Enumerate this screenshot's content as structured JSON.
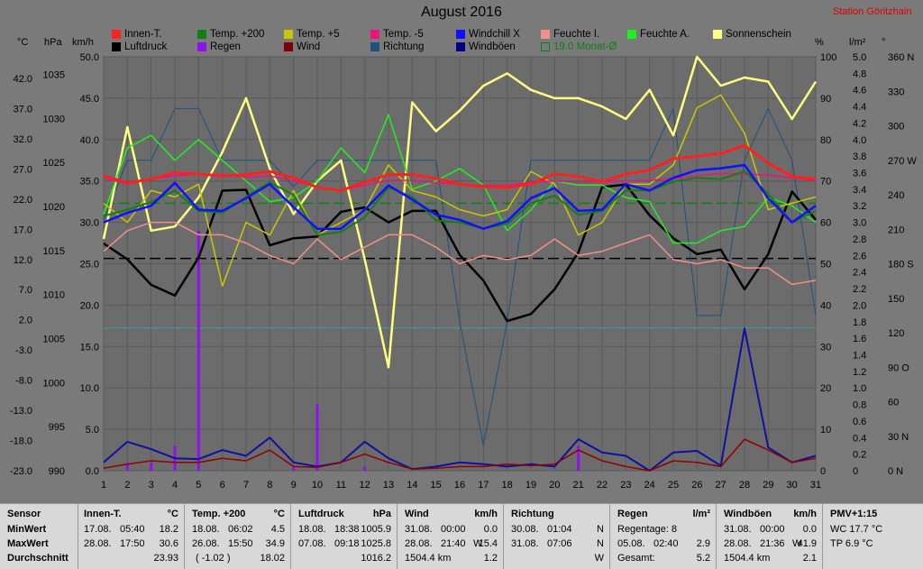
{
  "title": "August 2016",
  "station": "Station Göritzhain",
  "axis_units": {
    "temp": "°C",
    "pressure": "hPa",
    "wind": "km/h",
    "percent": "%",
    "rain": "l/m²",
    "deg": "°"
  },
  "legend": [
    {
      "label": "Innen-T.",
      "color": "#ff2020",
      "box": false
    },
    {
      "label": "Temp. +200",
      "color": "#108010",
      "box": false
    },
    {
      "label": "Temp. +5",
      "color": "#c8c800",
      "box": false
    },
    {
      "label": "Temp. -5",
      "color": "#f01080",
      "box": false
    },
    {
      "label": "Windchill X",
      "color": "#1010ff",
      "box": false
    },
    {
      "label": "Feuchte I.",
      "color": "#f0908a",
      "box": false
    },
    {
      "label": "Feuchte A.",
      "color": "#20f020",
      "box": false
    },
    {
      "label": "Sonnenschein",
      "color": "#ffff80",
      "box": false
    },
    {
      "label": "Luftdruck",
      "color": "#000000",
      "box": false
    },
    {
      "label": "Regen",
      "color": "#9010f0",
      "box": false
    },
    {
      "label": "Wind",
      "color": "#800000",
      "box": false
    },
    {
      "label": "Richtung",
      "color": "#205080",
      "box": false
    },
    {
      "label": "Windböen",
      "color": "#000080",
      "box": false
    },
    {
      "label": "19.0 Monat-Ø",
      "color": "#108010",
      "box": true
    }
  ],
  "chart_data": {
    "type": "line",
    "x": [
      1,
      2,
      3,
      4,
      5,
      6,
      7,
      8,
      9,
      10,
      11,
      12,
      13,
      14,
      15,
      16,
      17,
      18,
      19,
      20,
      21,
      22,
      23,
      24,
      25,
      26,
      27,
      28,
      29,
      30,
      31
    ],
    "axes": {
      "temp": {
        "ticks": [
          "42.0",
          "37.0",
          "32.0",
          "27.0",
          "22.0",
          "17.0",
          "12.0",
          "7.0",
          "2.0",
          "-3.0",
          "-8.0",
          "-13.0",
          "-18.0",
          "-23.0"
        ],
        "range": [
          -23,
          42
        ]
      },
      "pressure": {
        "ticks": [
          "1035",
          "1030",
          "1025",
          "1020",
          "1015",
          "1010",
          "1005",
          "1000",
          "995",
          "990"
        ],
        "range": [
          990,
          1037
        ]
      },
      "wind": {
        "ticks": [
          "50.0",
          "45.0",
          "40.0",
          "35.0",
          "30.0",
          "25.0",
          "20.0",
          "15.0",
          "10.0",
          "5.0",
          "0.0"
        ],
        "range": [
          0,
          50
        ]
      },
      "percent": {
        "ticks": [
          "100",
          "90",
          "80",
          "70",
          "60",
          "50",
          "40",
          "30",
          "20",
          "10",
          "0"
        ],
        "range": [
          0,
          100
        ]
      },
      "rain": {
        "ticks": [
          "5.0",
          "4.8",
          "4.6",
          "4.4",
          "4.2",
          "4.0",
          "3.8",
          "3.6",
          "3.4",
          "3.2",
          "3.0",
          "2.8",
          "2.6",
          "2.4",
          "2.2",
          "2.0",
          "1.8",
          "1.6",
          "1.4",
          "1.2",
          "1.0",
          "0.8",
          "0.6",
          "0.4",
          "0.2",
          "0"
        ],
        "range": [
          0,
          5
        ]
      },
      "direction": {
        "ticks": [
          "360 N",
          "330",
          "300",
          "270 W",
          "240",
          "210",
          "180 S",
          "150",
          "120",
          "90 O",
          "60",
          "30 N",
          "0 N"
        ],
        "values": [
          360,
          330,
          300,
          270,
          240,
          210,
          180,
          150,
          120,
          90,
          60,
          30,
          0
        ],
        "range": [
          0,
          360
        ]
      }
    },
    "xticks": [
      "1",
      "2",
      "3",
      "4",
      "5",
      "6",
      "7",
      "8",
      "9",
      "10",
      "11",
      "12",
      "13",
      "14",
      "15",
      "16",
      "17",
      "18",
      "19",
      "20",
      "21",
      "22",
      "23",
      "24",
      "25",
      "26",
      "27",
      "28",
      "29",
      "30",
      "31"
    ],
    "ref_lines": [
      {
        "axis": "temp",
        "value": 19.0,
        "color": "#108010",
        "style": "dash"
      },
      {
        "axis": "pressure",
        "value": 1014.1,
        "color": "#000000",
        "style": "dash"
      },
      {
        "axis": "pressure",
        "value": 1006.2,
        "color": "#40a0a0",
        "style": "solid"
      }
    ],
    "series": [
      {
        "name": "Richtung",
        "axis": "direction",
        "color": "#205080",
        "width": 1,
        "values": [
          218,
          270,
          270,
          315,
          315,
          270,
          270,
          270,
          247,
          270,
          270,
          270,
          270,
          270,
          270,
          130,
          22,
          130,
          270,
          270,
          270,
          270,
          270,
          270,
          315,
          135,
          135,
          270,
          315,
          270,
          135
        ]
      },
      {
        "name": "Luftdruck",
        "axis": "pressure",
        "color": "#000000",
        "width": 2.5,
        "values": [
          1015.8,
          1014.0,
          1011.1,
          1009.9,
          1014.2,
          1021.8,
          1021.9,
          1015.6,
          1016.4,
          1016.6,
          1019.4,
          1019.9,
          1018.2,
          1019.5,
          1019.5,
          1014.5,
          1011.6,
          1007.0,
          1007.8,
          1010.6,
          1014.8,
          1022.2,
          1022.5,
          1019.0,
          1016.4,
          1014.6,
          1015.1,
          1010.6,
          1014.6,
          1021.7,
          1018.5
        ]
      },
      {
        "name": "Sonnenschein",
        "axis": "percent",
        "color": "#ffff80",
        "width": 2.5,
        "values": [
          56,
          83,
          58,
          59,
          66,
          77,
          90,
          73,
          62,
          70,
          75,
          51,
          25,
          89,
          82,
          87,
          93,
          96,
          92,
          90,
          90,
          88,
          85,
          92,
          81,
          100,
          93,
          95,
          94,
          85,
          94
        ]
      },
      {
        "name": "Feuchte A.",
        "axis": "percent",
        "color": "#20f020",
        "width": 1.5,
        "values": [
          62,
          78,
          81,
          75,
          80,
          75,
          70,
          65,
          66,
          70,
          78,
          72,
          86,
          68,
          70,
          73,
          69,
          58,
          63,
          70,
          69,
          69,
          66,
          65,
          55,
          55,
          58,
          59,
          66,
          64,
          60
        ]
      },
      {
        "name": "Temp. +5",
        "axis": "temp",
        "color": "#c8c800",
        "width": 1.5,
        "values": [
          19,
          16,
          21,
          20,
          22,
          6,
          16,
          14,
          21,
          14,
          16,
          18,
          25,
          21,
          20,
          18,
          17,
          18,
          24,
          22,
          14,
          16,
          22,
          22,
          25,
          34,
          36,
          30,
          18,
          19,
          20
        ]
      },
      {
        "name": "Feuchte I.",
        "axis": "percent",
        "color": "#f0908a",
        "width": 1.5,
        "values": [
          53,
          58,
          60,
          60,
          57,
          57,
          55,
          52,
          50,
          56,
          51,
          54,
          57,
          57,
          54,
          50,
          52,
          51,
          52,
          56,
          52,
          53,
          55,
          57,
          51,
          50,
          51,
          49,
          49,
          45,
          46
        ]
      },
      {
        "name": "Temp. -5",
        "axis": "temp",
        "color": "#f01080",
        "width": 1.5,
        "values": [
          23.0,
          22.0,
          22.8,
          23.3,
          23.6,
          23.5,
          23.1,
          23.3,
          22.5,
          21.6,
          21.1,
          21.8,
          22.6,
          22.6,
          22.2,
          22.0,
          21.8,
          21.8,
          22.3,
          22.5,
          22.3,
          22.3,
          22.5,
          22.6,
          22.9,
          23.3,
          23.7,
          23.6,
          23.4,
          23.0,
          22.6
        ]
      },
      {
        "name": "Temp. +200",
        "axis": "temp",
        "color": "#108010",
        "width": 2,
        "values": [
          17.0,
          18.0,
          19.2,
          21.0,
          17.8,
          17.5,
          20.0,
          22.3,
          20.3,
          14.0,
          14.5,
          16.8,
          21.5,
          20.0,
          16.3,
          16.0,
          15.0,
          15.8,
          19.0,
          20.2,
          17.2,
          17.8,
          21.0,
          21.0,
          22.4,
          23.0,
          22.8,
          24.0,
          20.5,
          16.0,
          17.8
        ]
      },
      {
        "name": "Windchill X",
        "axis": "temp",
        "color": "#1010ff",
        "width": 2.5,
        "values": [
          16.0,
          17.5,
          18.6,
          22.2,
          18.0,
          17.8,
          19.8,
          22.0,
          18.4,
          15.0,
          15.0,
          18.0,
          21.8,
          19.6,
          17.2,
          16.4,
          15.0,
          16.2,
          19.8,
          21.4,
          17.8,
          18.0,
          22.0,
          21.0,
          23.0,
          24.2,
          24.5,
          25.0,
          19.8,
          16.0,
          18.6
        ]
      },
      {
        "name": "Innen-T.",
        "axis": "temp",
        "color": "#ff2020",
        "width": 3,
        "values": [
          23.3,
          22.2,
          22.8,
          23.8,
          23.6,
          23.3,
          23.5,
          24.0,
          23.0,
          21.5,
          21.0,
          22.3,
          23.5,
          23.5,
          22.9,
          22.0,
          21.6,
          21.5,
          22.0,
          23.6,
          23.2,
          22.4,
          23.6,
          24.2,
          26.0,
          26.4,
          26.8,
          28.1,
          25.3,
          23.2,
          22.8
        ]
      },
      {
        "name": "Windböen",
        "axis": "wind",
        "color": "#1010a0",
        "width": 2,
        "values": [
          1.0,
          3.5,
          2.6,
          1.5,
          1.4,
          2.5,
          1.8,
          4.0,
          1.0,
          0.5,
          1.0,
          3.5,
          1.5,
          0.2,
          0.5,
          1.0,
          0.8,
          0.5,
          0.8,
          0.5,
          3.8,
          2.2,
          1.8,
          0.0,
          2.2,
          2.4,
          0.6,
          17.2,
          2.8,
          1.0,
          1.8
        ]
      },
      {
        "name": "Wind",
        "axis": "wind",
        "color": "#900000",
        "width": 1.5,
        "values": [
          0.3,
          0.8,
          1.2,
          1.0,
          1.0,
          1.5,
          1.2,
          2.5,
          0.5,
          0.4,
          1.0,
          2.0,
          1.0,
          0.2,
          0.3,
          0.5,
          0.5,
          0.8,
          0.6,
          0.8,
          2.5,
          1.2,
          0.5,
          0.0,
          1.2,
          1.0,
          0.5,
          3.8,
          2.5,
          1.0,
          1.5
        ]
      }
    ],
    "rain_bars": {
      "axis": "rain",
      "color": "#9010f0",
      "values": [
        0,
        0.1,
        0.1,
        0.3,
        2.9,
        0,
        0,
        0,
        0.05,
        0.8,
        0,
        0.05,
        0,
        0,
        0,
        0,
        0,
        0,
        0,
        0,
        0.3,
        0,
        0,
        0,
        0,
        0,
        0,
        0,
        0,
        0,
        0
      ]
    }
  },
  "stats": {
    "col0": {
      "h": "Sensor",
      "r1": "MinWert",
      "r2": "MaxWert",
      "r3": "Durchschnitt"
    },
    "col1": {
      "h": "Innen-T.",
      "u": "°C",
      "r1a": "17.08.",
      "r1b": "05:40",
      "r1c": "18.2",
      "r2a": "28.08.",
      "r2b": "17:50",
      "r2c": "30.6",
      "r3c": "23.93"
    },
    "col2": {
      "h": "Temp. +200",
      "u": "°C",
      "r1a": "18.08.",
      "r1b": "06:02",
      "r1c": "4.5",
      "r2a": "26.08.",
      "r2b": "15:50",
      "r2c": "34.9",
      "r3a": "( -1.02 )",
      "r3c": "18.02"
    },
    "col3": {
      "h": "Luftdruck",
      "u": "hPa",
      "r1a": "18.08.",
      "r1b": "18:38",
      "r1c": "1005.9",
      "r2a": "07.08.",
      "r2b": "09:18",
      "r2c": "1025.8",
      "r3c": "1016.2"
    },
    "col4": {
      "h": "Wind",
      "u": "km/h",
      "r1a": "31.08.",
      "r1b": "00:00",
      "r1c": "0.0",
      "r2a": "28.08.",
      "r2b": "21:40",
      "r2d": "W",
      "r2c": "15.4",
      "r3a": "1504.4 km",
      "r3c": "1.2"
    },
    "col5": {
      "h": "Richtung",
      "r1a": "30.08.",
      "r1b": "01:04",
      "r1c": "N",
      "r2a": "31.08.",
      "r2b": "07:06",
      "r2c": "N",
      "r3c": "W"
    },
    "col6": {
      "h": "Regen",
      "u": "l/m²",
      "r1a": "Regentage: 8",
      "r2a": "05.08.",
      "r2b": "02:40",
      "r2c": "2.9",
      "r3a": "Gesamt:",
      "r3c": "5.2"
    },
    "col7": {
      "h": "Windböen",
      "u": "km/h",
      "r1a": "31.08.",
      "r1b": "00:00",
      "r1c": "0.0",
      "r2a": "28.08.",
      "r2b": "21:36",
      "r2d": "W",
      "r2c": "41.9",
      "r3a": "1504.4 km",
      "r3c": "2.1"
    },
    "col8": {
      "h": "PMV+1:15",
      "r1a": "WC 17.7 °C",
      "r2a": "TP 6.9 °C"
    }
  }
}
